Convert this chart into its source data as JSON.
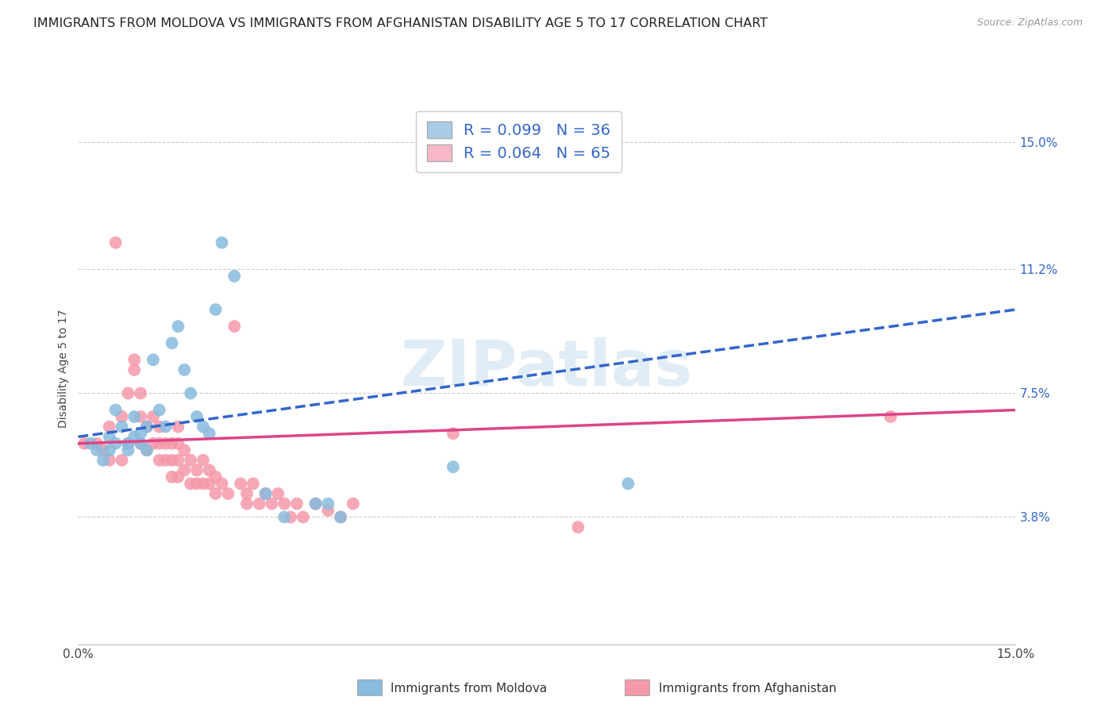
{
  "title": "IMMIGRANTS FROM MOLDOVA VS IMMIGRANTS FROM AFGHANISTAN DISABILITY AGE 5 TO 17 CORRELATION CHART",
  "source": "Source: ZipAtlas.com",
  "ylabel": "Disability Age 5 to 17",
  "ytick_labels": [
    "15.0%",
    "11.2%",
    "7.5%",
    "3.8%"
  ],
  "ytick_values": [
    0.15,
    0.112,
    0.075,
    0.038
  ],
  "xmin": 0.0,
  "xmax": 0.15,
  "ymin": 0.0,
  "ymax": 0.165,
  "legend_label1": "R = 0.099   N = 36",
  "legend_label2": "R = 0.064   N = 65",
  "legend_color1": "#a8cce8",
  "legend_color2": "#f9b8c8",
  "trendline1_color": "#3366cc",
  "trendline2_color": "#dd4488",
  "moldova_color": "#88bbdd",
  "afghanistan_color": "#f599aa",
  "moldova_scatter": [
    [
      0.002,
      0.06
    ],
    [
      0.003,
      0.058
    ],
    [
      0.004,
      0.055
    ],
    [
      0.005,
      0.062
    ],
    [
      0.005,
      0.058
    ],
    [
      0.006,
      0.07
    ],
    [
      0.006,
      0.06
    ],
    [
      0.007,
      0.065
    ],
    [
      0.008,
      0.06
    ],
    [
      0.008,
      0.058
    ],
    [
      0.009,
      0.068
    ],
    [
      0.009,
      0.062
    ],
    [
      0.01,
      0.063
    ],
    [
      0.01,
      0.06
    ],
    [
      0.011,
      0.065
    ],
    [
      0.011,
      0.058
    ],
    [
      0.012,
      0.085
    ],
    [
      0.013,
      0.07
    ],
    [
      0.014,
      0.065
    ],
    [
      0.015,
      0.09
    ],
    [
      0.016,
      0.095
    ],
    [
      0.017,
      0.082
    ],
    [
      0.018,
      0.075
    ],
    [
      0.019,
      0.068
    ],
    [
      0.02,
      0.065
    ],
    [
      0.021,
      0.063
    ],
    [
      0.022,
      0.1
    ],
    [
      0.023,
      0.12
    ],
    [
      0.025,
      0.11
    ],
    [
      0.03,
      0.045
    ],
    [
      0.033,
      0.038
    ],
    [
      0.038,
      0.042
    ],
    [
      0.04,
      0.042
    ],
    [
      0.042,
      0.038
    ],
    [
      0.06,
      0.053
    ],
    [
      0.088,
      0.048
    ]
  ],
  "afghanistan_scatter": [
    [
      0.001,
      0.06
    ],
    [
      0.003,
      0.06
    ],
    [
      0.004,
      0.058
    ],
    [
      0.005,
      0.065
    ],
    [
      0.005,
      0.055
    ],
    [
      0.006,
      0.12
    ],
    [
      0.007,
      0.068
    ],
    [
      0.007,
      0.055
    ],
    [
      0.008,
      0.075
    ],
    [
      0.008,
      0.06
    ],
    [
      0.009,
      0.085
    ],
    [
      0.009,
      0.082
    ],
    [
      0.01,
      0.075
    ],
    [
      0.01,
      0.068
    ],
    [
      0.01,
      0.06
    ],
    [
      0.011,
      0.065
    ],
    [
      0.011,
      0.058
    ],
    [
      0.012,
      0.068
    ],
    [
      0.012,
      0.06
    ],
    [
      0.013,
      0.065
    ],
    [
      0.013,
      0.06
    ],
    [
      0.013,
      0.055
    ],
    [
      0.014,
      0.06
    ],
    [
      0.014,
      0.055
    ],
    [
      0.015,
      0.06
    ],
    [
      0.015,
      0.055
    ],
    [
      0.015,
      0.05
    ],
    [
      0.016,
      0.065
    ],
    [
      0.016,
      0.06
    ],
    [
      0.016,
      0.055
    ],
    [
      0.016,
      0.05
    ],
    [
      0.017,
      0.058
    ],
    [
      0.017,
      0.052
    ],
    [
      0.018,
      0.055
    ],
    [
      0.018,
      0.048
    ],
    [
      0.019,
      0.052
    ],
    [
      0.019,
      0.048
    ],
    [
      0.02,
      0.055
    ],
    [
      0.02,
      0.048
    ],
    [
      0.021,
      0.052
    ],
    [
      0.021,
      0.048
    ],
    [
      0.022,
      0.05
    ],
    [
      0.022,
      0.045
    ],
    [
      0.023,
      0.048
    ],
    [
      0.024,
      0.045
    ],
    [
      0.025,
      0.095
    ],
    [
      0.026,
      0.048
    ],
    [
      0.027,
      0.045
    ],
    [
      0.027,
      0.042
    ],
    [
      0.028,
      0.048
    ],
    [
      0.029,
      0.042
    ],
    [
      0.03,
      0.045
    ],
    [
      0.031,
      0.042
    ],
    [
      0.032,
      0.045
    ],
    [
      0.033,
      0.042
    ],
    [
      0.034,
      0.038
    ],
    [
      0.035,
      0.042
    ],
    [
      0.036,
      0.038
    ],
    [
      0.038,
      0.042
    ],
    [
      0.04,
      0.04
    ],
    [
      0.042,
      0.038
    ],
    [
      0.044,
      0.042
    ],
    [
      0.06,
      0.063
    ],
    [
      0.08,
      0.035
    ],
    [
      0.13,
      0.068
    ]
  ],
  "grid_color": "#cccccc",
  "grid_linestyle": "--",
  "background_color": "#ffffff",
  "title_fontsize": 11.5,
  "axis_label_fontsize": 10,
  "tick_fontsize": 11,
  "legend_fontsize": 14
}
